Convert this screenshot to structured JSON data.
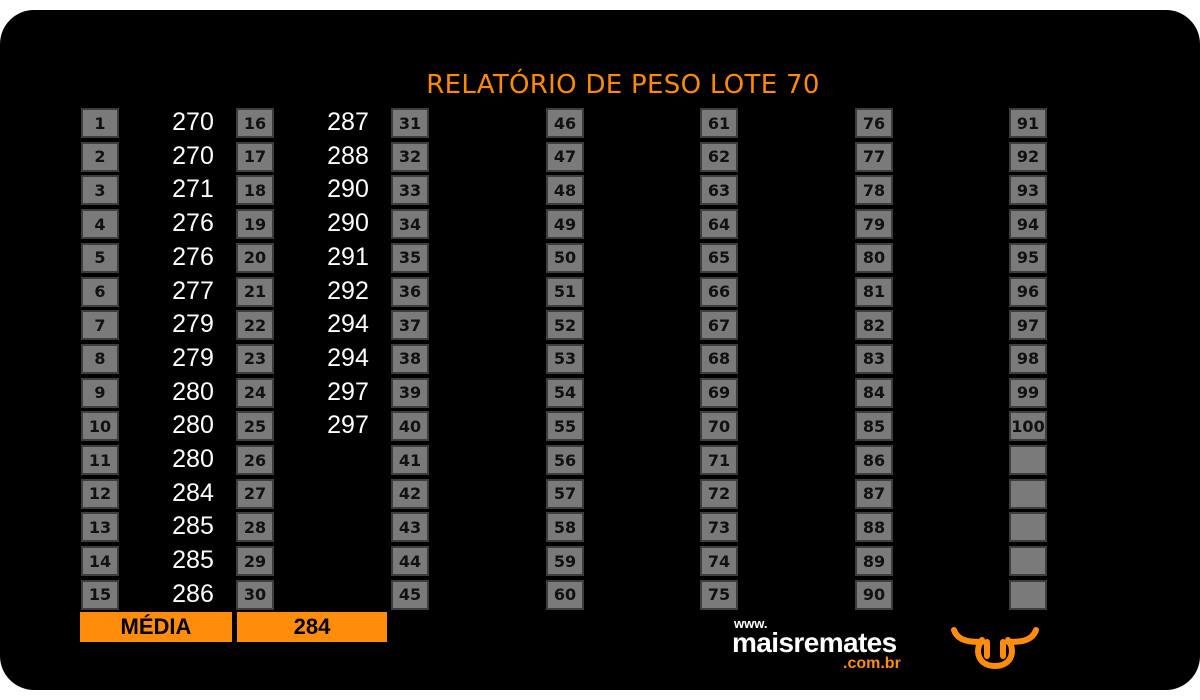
{
  "report": {
    "title": "RELATÓRIO DE PESO LOTE 70"
  },
  "entries": [
    {
      "number": "1",
      "weight": "270"
    },
    {
      "number": "2",
      "weight": "270"
    },
    {
      "number": "3",
      "weight": "271"
    },
    {
      "number": "4",
      "weight": "276"
    },
    {
      "number": "5",
      "weight": "276"
    },
    {
      "number": "6",
      "weight": "277"
    },
    {
      "number": "7",
      "weight": "279"
    },
    {
      "number": "8",
      "weight": "279"
    },
    {
      "number": "9",
      "weight": "280"
    },
    {
      "number": "10",
      "weight": "280"
    },
    {
      "number": "11",
      "weight": "280"
    },
    {
      "number": "12",
      "weight": "284"
    },
    {
      "number": "13",
      "weight": "285"
    },
    {
      "number": "14",
      "weight": "285"
    },
    {
      "number": "15",
      "weight": "286"
    },
    {
      "number": "16",
      "weight": "287"
    },
    {
      "number": "17",
      "weight": "288"
    },
    {
      "number": "18",
      "weight": "290"
    },
    {
      "number": "19",
      "weight": "290"
    },
    {
      "number": "20",
      "weight": "291"
    },
    {
      "number": "21",
      "weight": "292"
    },
    {
      "number": "22",
      "weight": "294"
    },
    {
      "number": "23",
      "weight": "294"
    },
    {
      "number": "24",
      "weight": "297"
    },
    {
      "number": "25",
      "weight": "297"
    },
    {
      "number": "26",
      "weight": ""
    },
    {
      "number": "27",
      "weight": ""
    },
    {
      "number": "28",
      "weight": ""
    },
    {
      "number": "29",
      "weight": ""
    },
    {
      "number": "30",
      "weight": ""
    },
    {
      "number": "31",
      "weight": ""
    },
    {
      "number": "32",
      "weight": ""
    },
    {
      "number": "33",
      "weight": ""
    },
    {
      "number": "34",
      "weight": ""
    },
    {
      "number": "35",
      "weight": ""
    },
    {
      "number": "36",
      "weight": ""
    },
    {
      "number": "37",
      "weight": ""
    },
    {
      "number": "38",
      "weight": ""
    },
    {
      "number": "39",
      "weight": ""
    },
    {
      "number": "40",
      "weight": ""
    },
    {
      "number": "41",
      "weight": ""
    },
    {
      "number": "42",
      "weight": ""
    },
    {
      "number": "43",
      "weight": ""
    },
    {
      "number": "44",
      "weight": ""
    },
    {
      "number": "45",
      "weight": ""
    },
    {
      "number": "46",
      "weight": ""
    },
    {
      "number": "47",
      "weight": ""
    },
    {
      "number": "48",
      "weight": ""
    },
    {
      "number": "49",
      "weight": ""
    },
    {
      "number": "50",
      "weight": ""
    },
    {
      "number": "51",
      "weight": ""
    },
    {
      "number": "52",
      "weight": ""
    },
    {
      "number": "53",
      "weight": ""
    },
    {
      "number": "54",
      "weight": ""
    },
    {
      "number": "55",
      "weight": ""
    },
    {
      "number": "56",
      "weight": ""
    },
    {
      "number": "57",
      "weight": ""
    },
    {
      "number": "58",
      "weight": ""
    },
    {
      "number": "59",
      "weight": ""
    },
    {
      "number": "60",
      "weight": ""
    },
    {
      "number": "61",
      "weight": ""
    },
    {
      "number": "62",
      "weight": ""
    },
    {
      "number": "63",
      "weight": ""
    },
    {
      "number": "64",
      "weight": ""
    },
    {
      "number": "65",
      "weight": ""
    },
    {
      "number": "66",
      "weight": ""
    },
    {
      "number": "67",
      "weight": ""
    },
    {
      "number": "68",
      "weight": ""
    },
    {
      "number": "69",
      "weight": ""
    },
    {
      "number": "70",
      "weight": ""
    },
    {
      "number": "71",
      "weight": ""
    },
    {
      "number": "72",
      "weight": ""
    },
    {
      "number": "73",
      "weight": ""
    },
    {
      "number": "74",
      "weight": ""
    },
    {
      "number": "75",
      "weight": ""
    },
    {
      "number": "76",
      "weight": ""
    },
    {
      "number": "77",
      "weight": ""
    },
    {
      "number": "78",
      "weight": ""
    },
    {
      "number": "79",
      "weight": ""
    },
    {
      "number": "80",
      "weight": ""
    },
    {
      "number": "81",
      "weight": ""
    },
    {
      "number": "82",
      "weight": ""
    },
    {
      "number": "83",
      "weight": ""
    },
    {
      "number": "84",
      "weight": ""
    },
    {
      "number": "85",
      "weight": ""
    },
    {
      "number": "86",
      "weight": ""
    },
    {
      "number": "87",
      "weight": ""
    },
    {
      "number": "88",
      "weight": ""
    },
    {
      "number": "89",
      "weight": ""
    },
    {
      "number": "90",
      "weight": ""
    },
    {
      "number": "91",
      "weight": ""
    },
    {
      "number": "92",
      "weight": ""
    },
    {
      "number": "93",
      "weight": ""
    },
    {
      "number": "94",
      "weight": ""
    },
    {
      "number": "95",
      "weight": ""
    },
    {
      "number": "96",
      "weight": ""
    },
    {
      "number": "97",
      "weight": ""
    },
    {
      "number": "98",
      "weight": ""
    },
    {
      "number": "99",
      "weight": ""
    },
    {
      "number": "100",
      "weight": ""
    }
  ],
  "summary": {
    "label": "MÉDIA",
    "value": "284"
  },
  "branding": {
    "prefix": "www.",
    "name": "maisremates",
    "suffix": ".com.br",
    "logo_icon": "bull-head-icon"
  },
  "colors": {
    "background": "#000000",
    "accent": "#ff8c0a",
    "cell_fill": "#7a7a7a",
    "text": "#ffffff"
  }
}
